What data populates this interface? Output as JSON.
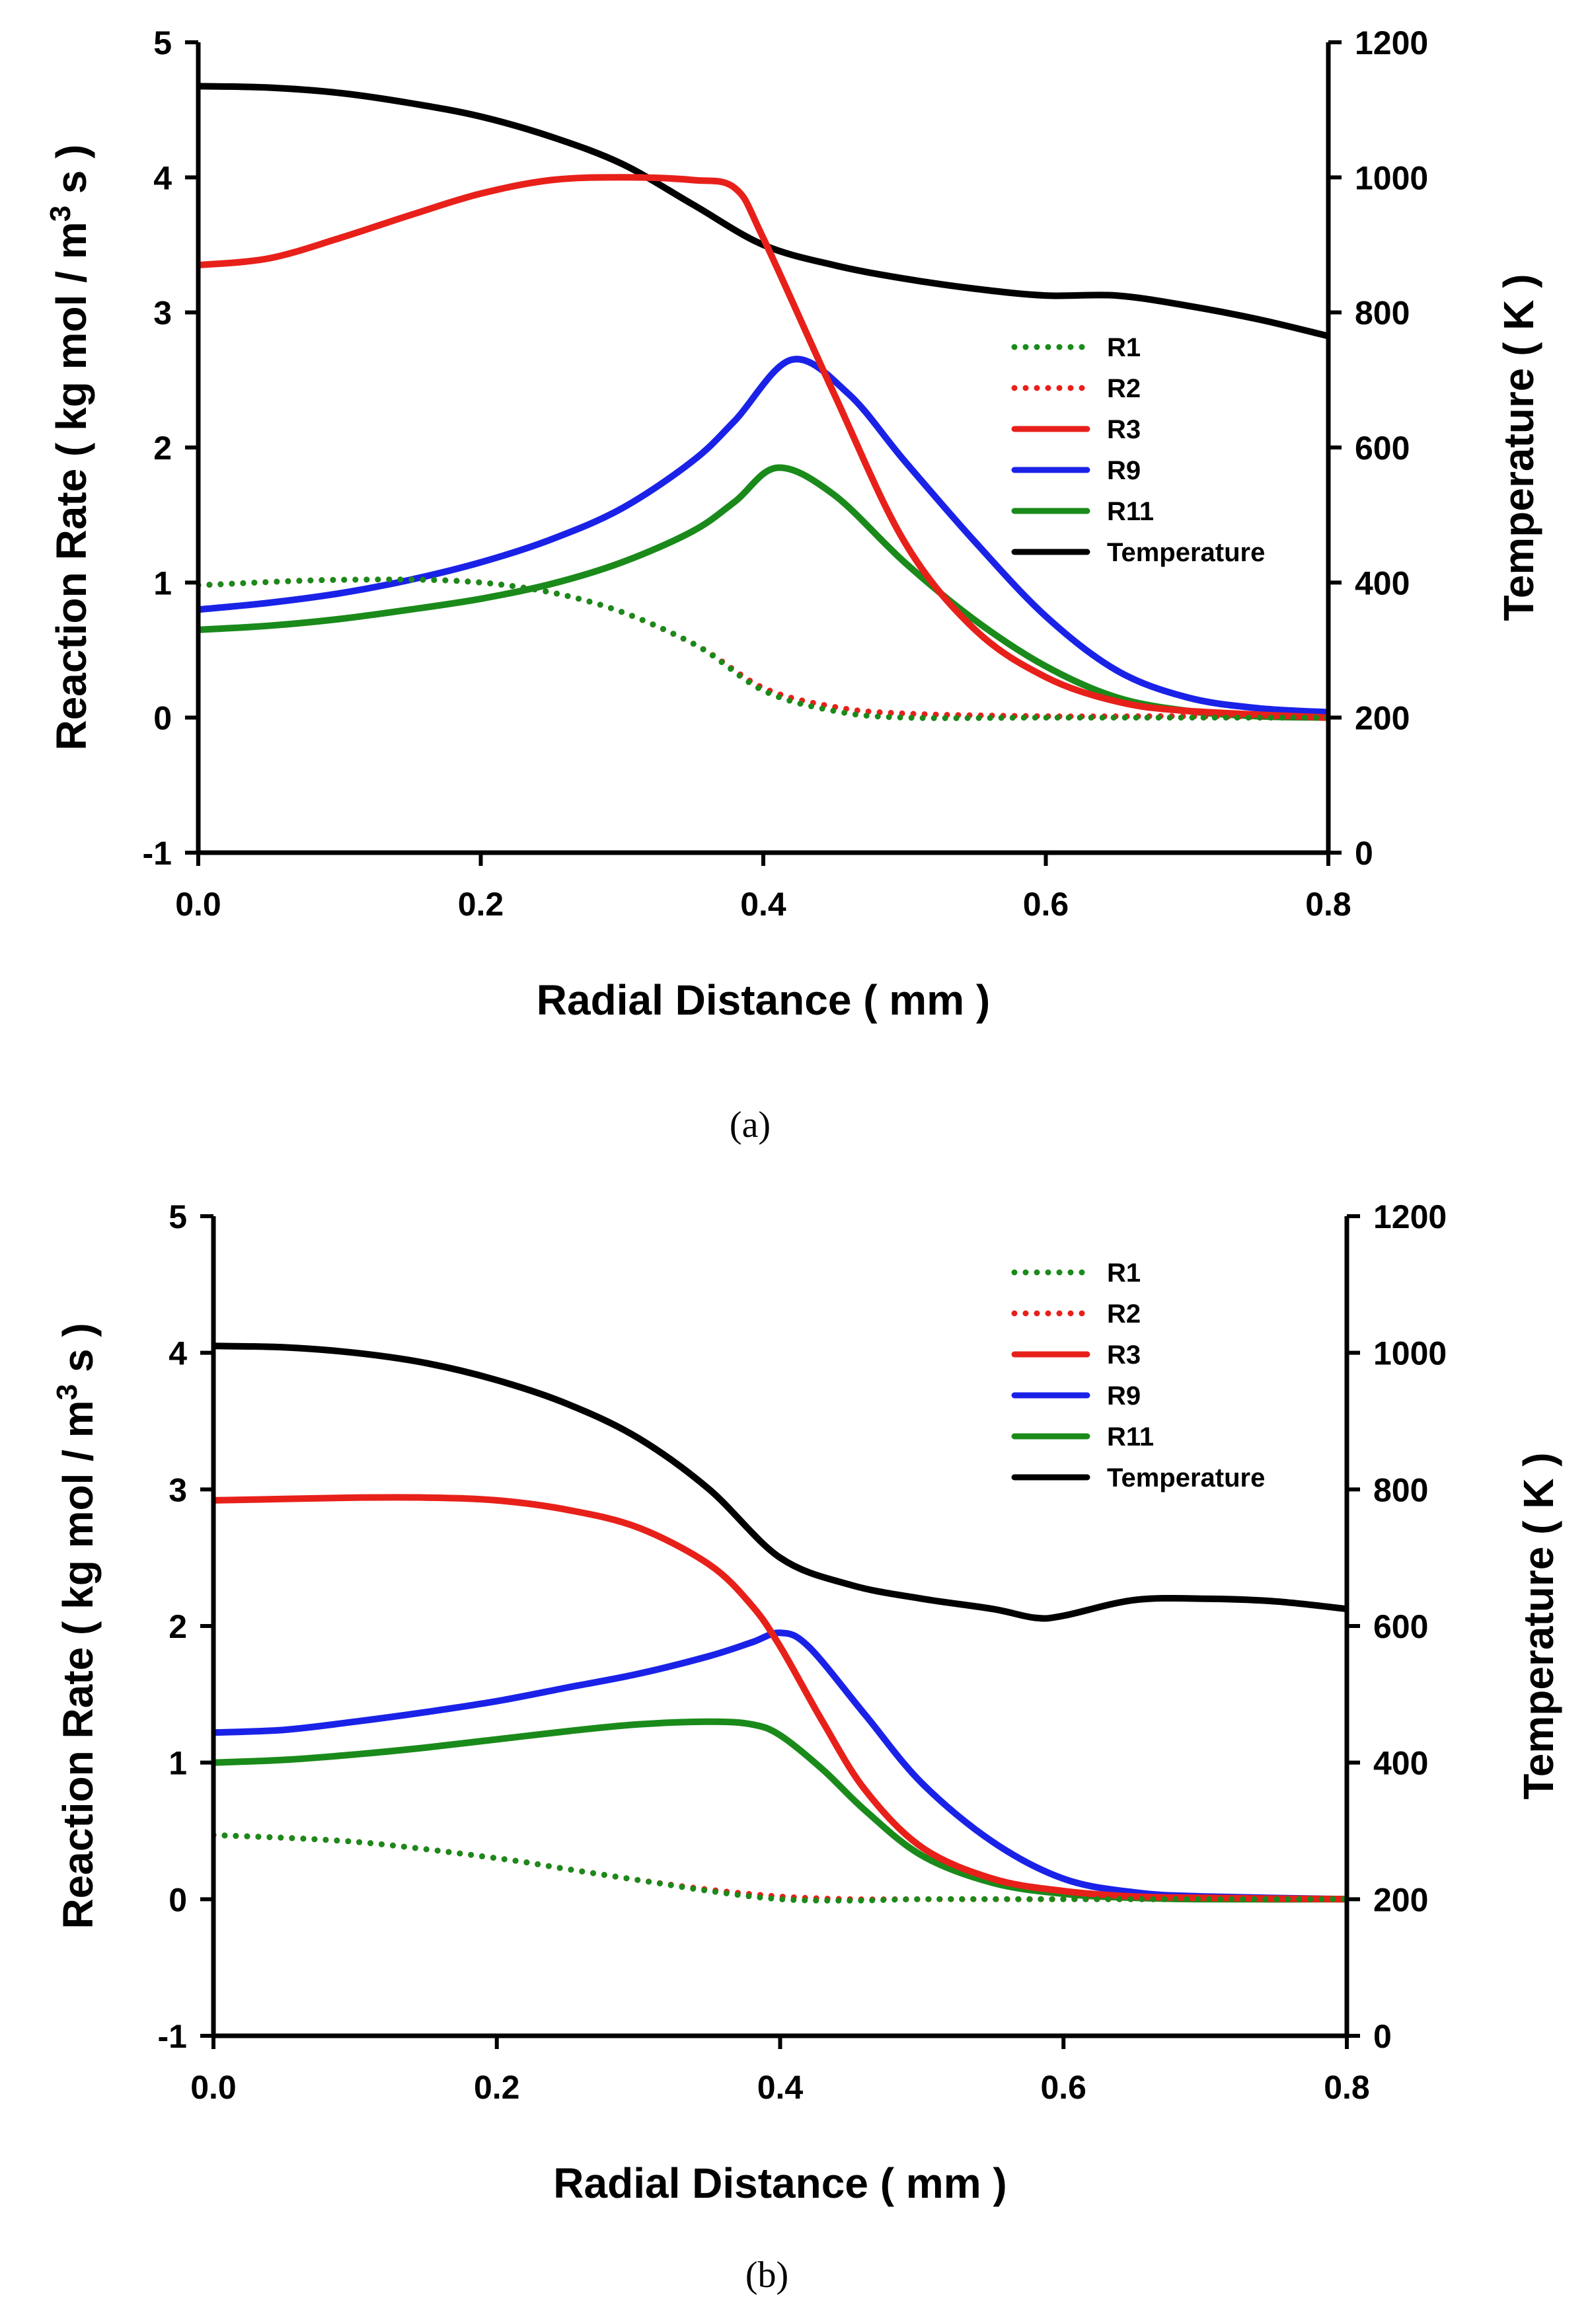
{
  "chart_data": [
    {
      "panel": "a",
      "caption": "(a)",
      "type": "line",
      "xlabel": "Radial Distance ( mm )",
      "ylabel_left": "Reaction Rate ( kg mol / m",
      "ylabel_left_sup": "3",
      "ylabel_left_tail": " s )",
      "ylabel_right": "Temperature ( K )",
      "xlim": [
        0.0,
        0.8
      ],
      "ylim_left": [
        -1,
        5
      ],
      "ylim_right": [
        0,
        1200
      ],
      "x_ticks": [
        "0.0",
        "0.2",
        "0.4",
        "0.6",
        "0.8"
      ],
      "y_left_ticks": [
        "-1",
        "0",
        "1",
        "2",
        "3",
        "4",
        "5"
      ],
      "y_right_ticks": [
        "0",
        "200",
        "400",
        "600",
        "800",
        "1000",
        "1200"
      ],
      "legend_position": "right-middle",
      "series": [
        {
          "name": "R1",
          "axis": "left",
          "color": "#1a8a1a",
          "style": "dotted",
          "x": [
            0,
            0.1,
            0.2,
            0.28,
            0.35,
            0.4,
            0.45,
            0.5,
            0.6,
            0.7,
            0.8
          ],
          "y": [
            0.98,
            1.02,
            1.0,
            0.85,
            0.55,
            0.2,
            0.05,
            0.0,
            0.0,
            0.0,
            0.0
          ]
        },
        {
          "name": "R2",
          "axis": "left",
          "color": "#e8201a",
          "style": "dotted",
          "x": [
            0,
            0.1,
            0.2,
            0.28,
            0.35,
            0.4,
            0.45,
            0.5,
            0.6,
            0.7,
            0.8
          ],
          "y": [
            0.98,
            1.02,
            1.0,
            0.85,
            0.55,
            0.22,
            0.08,
            0.03,
            0.01,
            0.01,
            0.0
          ]
        },
        {
          "name": "R3",
          "axis": "left",
          "color": "#e8201a",
          "style": "solid",
          "x": [
            0,
            0.05,
            0.1,
            0.15,
            0.2,
            0.25,
            0.3,
            0.35,
            0.38,
            0.4,
            0.45,
            0.5,
            0.55,
            0.6,
            0.65,
            0.7,
            0.8
          ],
          "y": [
            3.35,
            3.4,
            3.55,
            3.72,
            3.88,
            3.98,
            4.0,
            3.98,
            3.92,
            3.55,
            2.4,
            1.3,
            0.65,
            0.3,
            0.12,
            0.05,
            0.0
          ]
        },
        {
          "name": "R9",
          "axis": "left",
          "color": "#1a22e8",
          "style": "solid",
          "x": [
            0,
            0.05,
            0.1,
            0.15,
            0.2,
            0.25,
            0.3,
            0.35,
            0.38,
            0.42,
            0.46,
            0.5,
            0.55,
            0.6,
            0.65,
            0.7,
            0.75,
            0.8
          ],
          "y": [
            0.8,
            0.85,
            0.92,
            1.02,
            1.15,
            1.32,
            1.55,
            1.9,
            2.2,
            2.65,
            2.4,
            1.9,
            1.3,
            0.75,
            0.35,
            0.15,
            0.07,
            0.04
          ]
        },
        {
          "name": "R11",
          "axis": "left",
          "color": "#1a8a1a",
          "style": "solid",
          "x": [
            0,
            0.05,
            0.1,
            0.15,
            0.2,
            0.25,
            0.3,
            0.35,
            0.38,
            0.41,
            0.45,
            0.5,
            0.55,
            0.6,
            0.65,
            0.7,
            0.75,
            0.8
          ],
          "y": [
            0.65,
            0.68,
            0.73,
            0.8,
            0.88,
            0.99,
            1.15,
            1.38,
            1.6,
            1.85,
            1.65,
            1.15,
            0.72,
            0.38,
            0.15,
            0.05,
            0.01,
            0.0
          ]
        },
        {
          "name": "Temperature",
          "axis": "right",
          "color": "#000000",
          "style": "solid",
          "x": [
            0,
            0.05,
            0.1,
            0.15,
            0.2,
            0.25,
            0.3,
            0.35,
            0.4,
            0.45,
            0.5,
            0.55,
            0.6,
            0.65,
            0.7,
            0.75,
            0.8
          ],
          "y": [
            1135,
            1133,
            1125,
            1110,
            1090,
            1060,
            1020,
            960,
            900,
            870,
            850,
            835,
            825,
            825,
            810,
            790,
            765
          ]
        }
      ]
    },
    {
      "panel": "b",
      "caption": "(b)",
      "type": "line",
      "xlabel": "Radial Distance ( mm )",
      "ylabel_left": "Reaction Rate ( kg mol / m",
      "ylabel_left_sup": "3",
      "ylabel_left_tail": " s )",
      "ylabel_right": "Temperature ( K )",
      "xlim": [
        0.0,
        0.8
      ],
      "ylim_left": [
        -1,
        5
      ],
      "ylim_right": [
        0,
        1200
      ],
      "x_ticks": [
        "0.0",
        "0.2",
        "0.4",
        "0.6",
        "0.8"
      ],
      "y_left_ticks": [
        "-1",
        "0",
        "1",
        "2",
        "3",
        "4",
        "5"
      ],
      "y_right_ticks": [
        "0",
        "200",
        "400",
        "600",
        "800",
        "1000",
        "1200"
      ],
      "legend_position": "top-right",
      "series": [
        {
          "name": "R1",
          "axis": "left",
          "color": "#1a8a1a",
          "style": "dotted",
          "x": [
            0,
            0.1,
            0.2,
            0.25,
            0.3,
            0.35,
            0.4,
            0.45,
            0.5,
            0.6,
            0.7,
            0.8
          ],
          "y": [
            0.47,
            0.42,
            0.3,
            0.22,
            0.14,
            0.06,
            0.0,
            -0.01,
            0.0,
            0.0,
            0.0,
            0.0
          ]
        },
        {
          "name": "R2",
          "axis": "left",
          "color": "#e8201a",
          "style": "dotted",
          "x": [
            0,
            0.1,
            0.2,
            0.25,
            0.3,
            0.35,
            0.4,
            0.45,
            0.5,
            0.6,
            0.7,
            0.8
          ],
          "y": [
            0.47,
            0.42,
            0.3,
            0.22,
            0.14,
            0.07,
            0.02,
            0.0,
            0.0,
            0.0,
            0.0,
            0.0
          ]
        },
        {
          "name": "R3",
          "axis": "left",
          "color": "#e8201a",
          "style": "solid",
          "x": [
            0,
            0.05,
            0.1,
            0.15,
            0.2,
            0.25,
            0.3,
            0.35,
            0.38,
            0.4,
            0.43,
            0.46,
            0.5,
            0.55,
            0.6,
            0.65,
            0.7,
            0.8
          ],
          "y": [
            2.92,
            2.93,
            2.94,
            2.94,
            2.92,
            2.85,
            2.72,
            2.45,
            2.15,
            1.85,
            1.3,
            0.8,
            0.38,
            0.15,
            0.06,
            0.02,
            0.01,
            0.0
          ]
        },
        {
          "name": "R9",
          "axis": "left",
          "color": "#1a22e8",
          "style": "solid",
          "x": [
            0,
            0.05,
            0.1,
            0.15,
            0.2,
            0.25,
            0.3,
            0.35,
            0.38,
            0.4,
            0.42,
            0.46,
            0.5,
            0.55,
            0.6,
            0.65,
            0.7,
            0.8
          ],
          "y": [
            1.22,
            1.24,
            1.3,
            1.37,
            1.45,
            1.55,
            1.65,
            1.78,
            1.88,
            1.95,
            1.85,
            1.35,
            0.85,
            0.42,
            0.15,
            0.05,
            0.02,
            0.0
          ]
        },
        {
          "name": "R11",
          "axis": "left",
          "color": "#1a8a1a",
          "style": "solid",
          "x": [
            0,
            0.05,
            0.1,
            0.15,
            0.2,
            0.25,
            0.3,
            0.35,
            0.38,
            0.4,
            0.43,
            0.46,
            0.5,
            0.55,
            0.6,
            0.65,
            0.7,
            0.8
          ],
          "y": [
            1.0,
            1.02,
            1.06,
            1.11,
            1.17,
            1.23,
            1.28,
            1.3,
            1.28,
            1.2,
            0.95,
            0.65,
            0.32,
            0.12,
            0.04,
            0.01,
            0.0,
            0.0
          ]
        },
        {
          "name": "Temperature",
          "axis": "right",
          "color": "#000000",
          "style": "solid",
          "x": [
            0,
            0.05,
            0.1,
            0.15,
            0.2,
            0.25,
            0.3,
            0.35,
            0.4,
            0.45,
            0.5,
            0.55,
            0.58,
            0.6,
            0.65,
            0.7,
            0.75,
            0.8
          ],
          "y": [
            1010,
            1008,
            1000,
            985,
            960,
            925,
            875,
            800,
            700,
            660,
            640,
            625,
            612,
            615,
            638,
            640,
            636,
            625
          ]
        }
      ]
    }
  ]
}
